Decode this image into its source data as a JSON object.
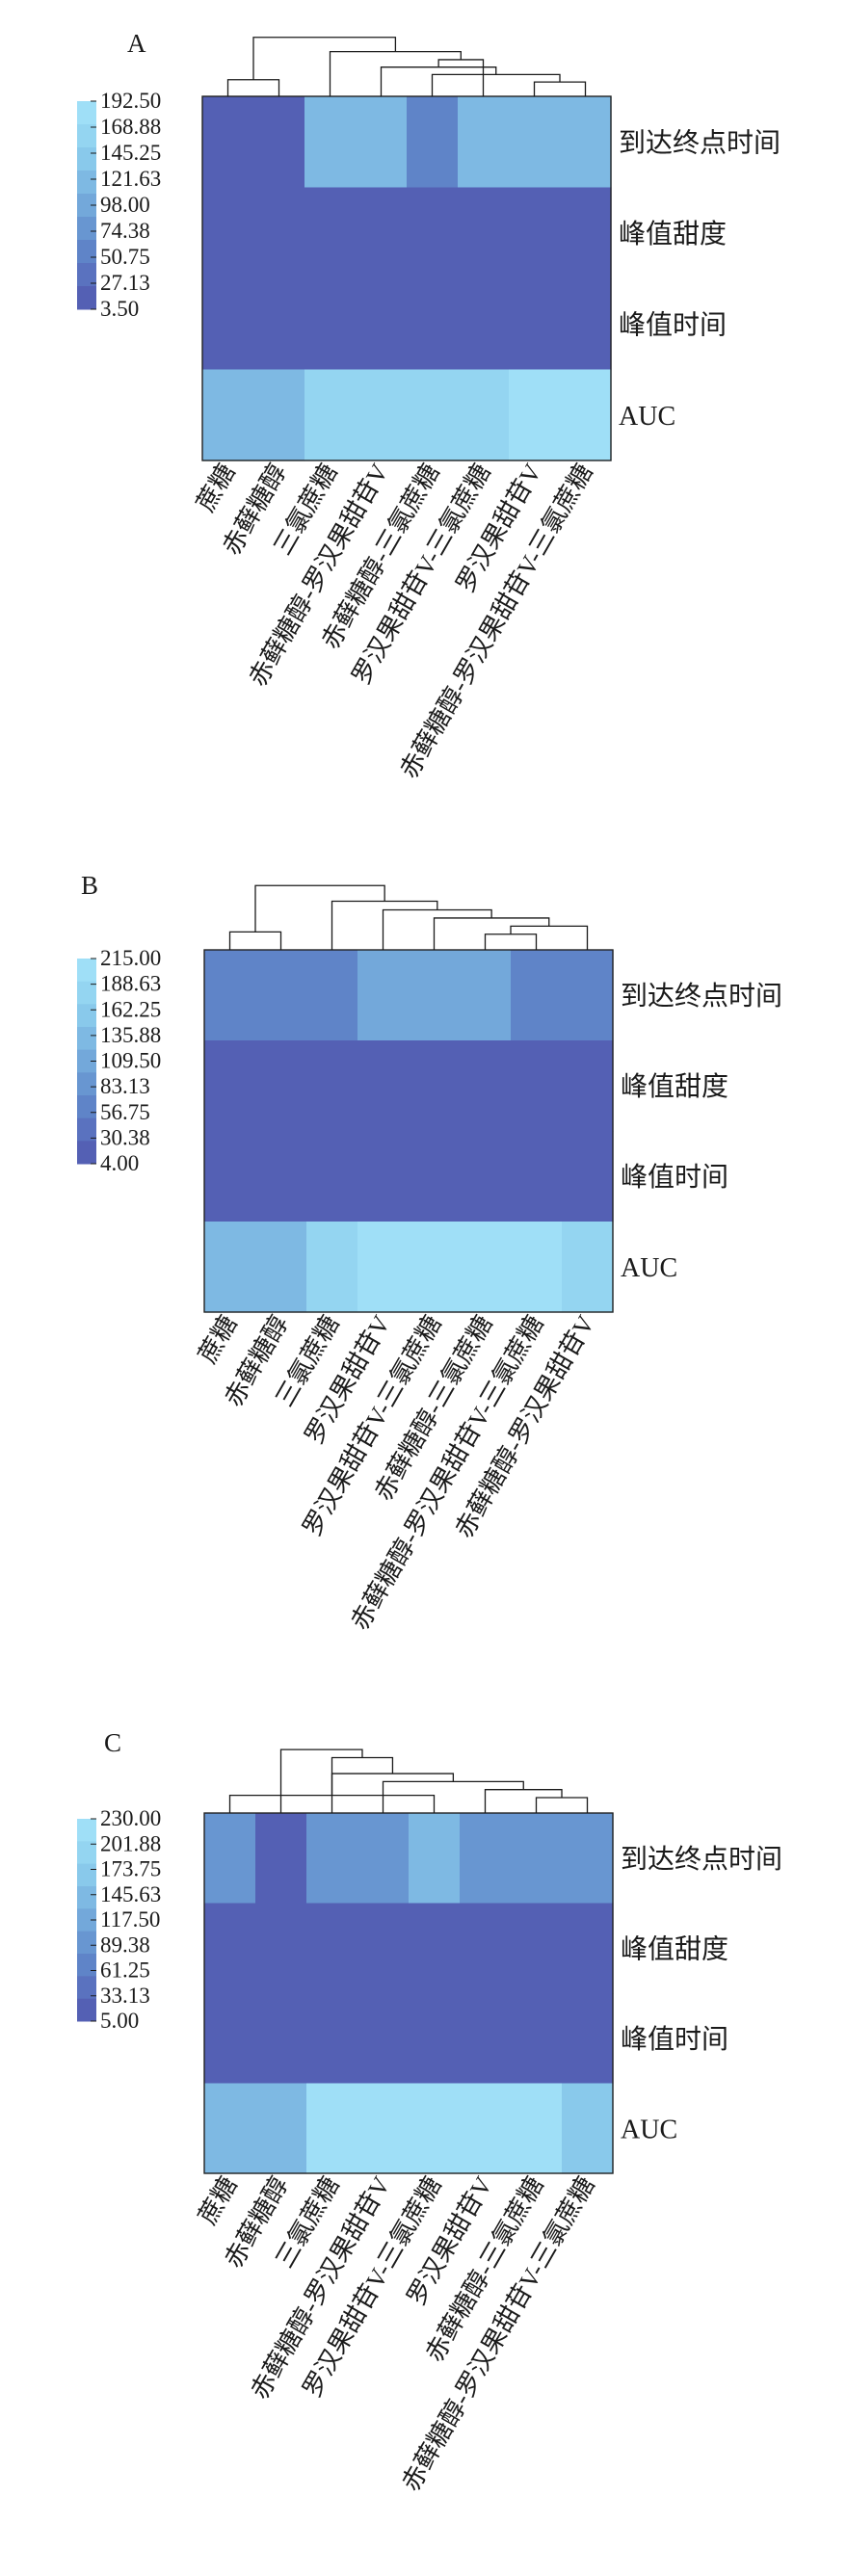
{
  "colors": {
    "scale": [
      "#5460B4",
      "#5A72BF",
      "#5F84C8",
      "#6896D1",
      "#73A8DA",
      "#7EB9E3",
      "#89C9EB",
      "#94D5F1",
      "#9FDFF7"
    ],
    "text": "#1a1a1a"
  },
  "chart_data": [
    {
      "type": "heatmap",
      "panel": "A",
      "legend_ticks": [
        "192.50",
        "168.88",
        "145.25",
        "121.63",
        "98.00",
        "74.38",
        "50.75",
        "27.13",
        "3.50"
      ],
      "range": [
        3.5,
        192.5
      ],
      "rows": [
        "到达终点时间",
        "峰值甜度",
        "峰值时间",
        "AUC"
      ],
      "columns": [
        "蔗糖",
        "赤藓糖醇",
        "三氯蔗糖",
        "赤藓糖醇-罗汉果甜苷V",
        "赤藓糖醇-三氯蔗糖",
        "罗汉果甜苷V-三氯蔗糖",
        "罗汉果甜苷V",
        "赤藓糖醇-罗汉果甜苷V-三氯蔗糖"
      ],
      "values": [
        [
          10,
          10,
          115,
          115,
          60,
          115,
          115,
          115
        ],
        [
          5,
          5,
          5,
          5,
          5,
          5,
          5,
          5
        ],
        [
          5,
          5,
          5,
          5,
          5,
          5,
          5,
          5
        ],
        [
          120,
          120,
          158,
          158,
          170,
          170,
          182,
          182
        ]
      ],
      "dendrogram": [
        [
          6,
          7
        ],
        [
          4,
          8
        ],
        [
          3,
          9
        ],
        [
          5,
          10
        ],
        [
          0,
          1
        ],
        [
          2,
          11
        ],
        [
          12,
          13
        ]
      ]
    },
    {
      "type": "heatmap",
      "panel": "B",
      "legend_ticks": [
        "215.00",
        "188.63",
        "162.25",
        "135.88",
        "109.50",
        "83.13",
        "56.75",
        "30.38",
        "4.00"
      ],
      "range": [
        4.0,
        215.0
      ],
      "rows": [
        "到达终点时间",
        "峰值甜度",
        "峰值时间",
        "AUC"
      ],
      "columns": [
        "蔗糖",
        "赤藓糖醇",
        "三氯蔗糖",
        "罗汉果甜苷V",
        "罗汉果甜苷V-三氯蔗糖",
        "赤藓糖醇-三氯蔗糖",
        "赤藓糖醇-罗汉果甜苷V-三氯蔗糖",
        "赤藓糖醇-罗汉果甜苷V"
      ],
      "values": [
        [
          60,
          60,
          60,
          105,
          105,
          105,
          55,
          55
        ],
        [
          6,
          6,
          6,
          6,
          6,
          6,
          6,
          6
        ],
        [
          6,
          6,
          6,
          6,
          6,
          6,
          6,
          6
        ],
        [
          130,
          130,
          175,
          195,
          195,
          195,
          195,
          175
        ]
      ],
      "dendrogram": [
        [
          5,
          6
        ],
        [
          8,
          7
        ],
        [
          4,
          9
        ],
        [
          3,
          10
        ],
        [
          0,
          1
        ],
        [
          2,
          11
        ],
        [
          12,
          13
        ]
      ]
    },
    {
      "type": "heatmap",
      "panel": "C",
      "legend_ticks": [
        "230.00",
        "201.88",
        "173.75",
        "145.63",
        "117.50",
        "89.38",
        "61.25",
        "33.13",
        "5.00"
      ],
      "range": [
        5.0,
        230.0
      ],
      "rows": [
        "到达终点时间",
        "峰值甜度",
        "峰值时间",
        "AUC"
      ],
      "columns": [
        "蔗糖",
        "赤藓糖醇",
        "三氯蔗糖",
        "赤藓糖醇-罗汉果甜苷V",
        "罗汉果甜苷V-三氯蔗糖",
        "罗汉果甜苷V",
        "赤藓糖醇-三氯蔗糖",
        "赤藓糖醇-罗汉果甜苷V-三氯蔗糖"
      ],
      "values": [
        [
          80,
          20,
          80,
          80,
          130,
          80,
          80,
          80
        ],
        [
          7,
          7,
          7,
          7,
          7,
          7,
          7,
          7
        ],
        [
          7,
          7,
          7,
          7,
          7,
          7,
          7,
          7
        ],
        [
          130,
          130,
          220,
          220,
          220,
          220,
          220,
          175
        ]
      ],
      "dendrogram": [
        [
          6,
          7
        ],
        [
          5,
          8
        ],
        [
          3,
          9
        ],
        [
          2,
          10
        ],
        [
          0,
          4
        ],
        [
          11,
          12
        ],
        [
          1,
          13
        ]
      ]
    }
  ]
}
